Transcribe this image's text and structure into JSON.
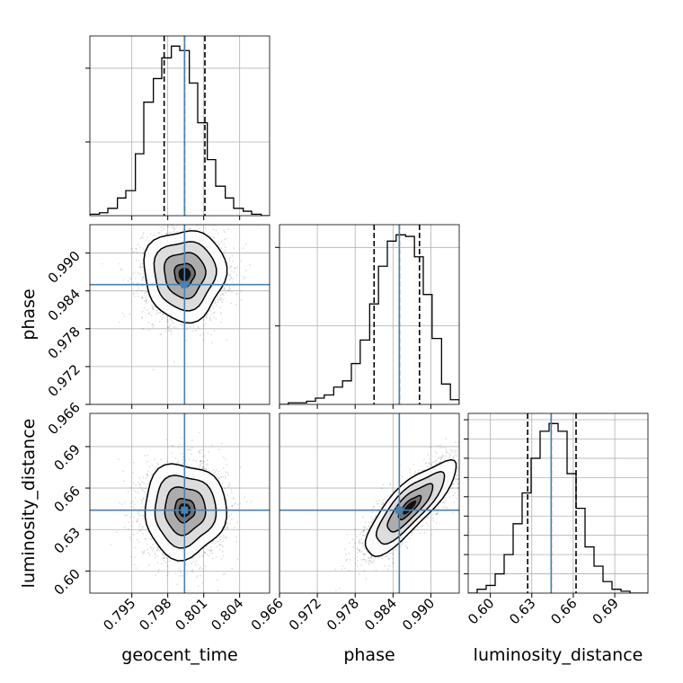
{
  "chart_data": {
    "type": "corner",
    "parameters": [
      "geocent_time",
      "phase",
      "luminosity_distance"
    ],
    "truths": {
      "geocent_time": 0.7994,
      "phase": 0.985,
      "luminosity_distance": 0.644
    },
    "quantiles": {
      "geocent_time": [
        0.7977,
        0.7994,
        0.8011
      ],
      "phase": [
        0.981,
        0.985,
        0.9882
      ],
      "luminosity_distance": [
        0.627,
        0.644,
        0.662
      ]
    },
    "axes": {
      "geocent_time": {
        "range": [
          0.7915,
          0.8065
        ],
        "ticks": [
          0.795,
          0.798,
          0.801,
          0.804
        ],
        "tick_labels": [
          "0.795",
          "0.798",
          "0.801",
          "0.804"
        ]
      },
      "phase": {
        "range": [
          0.966,
          0.9945
        ],
        "ticks": [
          0.966,
          0.972,
          0.978,
          0.984,
          0.99
        ],
        "tick_labels": [
          "0.966",
          "0.972",
          "0.978",
          "0.984",
          "0.990"
        ]
      },
      "luminosity_distance": {
        "range": [
          0.584,
          0.714
        ],
        "ticks": [
          0.6,
          0.63,
          0.66,
          0.69
        ],
        "tick_labels": [
          "0.60",
          "0.63",
          "0.66",
          "0.69"
        ]
      }
    },
    "histograms": {
      "geocent_time": {
        "bin_edges": [
          0.7915,
          0.7923,
          0.793,
          0.7938,
          0.7945,
          0.7953,
          0.796,
          0.7968,
          0.7975,
          0.7983,
          0.799,
          0.7998,
          0.8005,
          0.8013,
          0.802,
          0.8028,
          0.8035,
          0.8043,
          0.805,
          0.8058,
          0.8065
        ],
        "counts": [
          1,
          2,
          5,
          12,
          17,
          42,
          77,
          93,
          107,
          115,
          112,
          90,
          63,
          38,
          20,
          12,
          5,
          3,
          1,
          0
        ]
      },
      "phase": {
        "bin_edges": [
          0.966,
          0.9674,
          0.9689,
          0.9703,
          0.9717,
          0.9731,
          0.9746,
          0.976,
          0.9774,
          0.9788,
          0.9803,
          0.9817,
          0.9831,
          0.9845,
          0.986,
          0.9874,
          0.9888,
          0.9902,
          0.9917,
          0.9931,
          0.9945
        ],
        "counts": [
          0,
          1,
          1,
          2,
          4,
          6,
          11,
          15,
          26,
          41,
          64,
          88,
          104,
          108,
          107,
          94,
          70,
          42,
          13,
          3
        ]
      },
      "luminosity_distance": {
        "bin_edges": [
          0.584,
          0.5905,
          0.597,
          0.6035,
          0.61,
          0.6165,
          0.623,
          0.6295,
          0.636,
          0.6425,
          0.649,
          0.6555,
          0.662,
          0.6685,
          0.675,
          0.6815,
          0.688,
          0.6945,
          0.701,
          0.7075,
          0.714
        ],
        "counts": [
          0,
          2,
          4,
          10,
          20,
          36,
          52,
          70,
          84,
          88,
          84,
          62,
          44,
          24,
          14,
          6,
          2,
          1,
          0,
          0
        ]
      }
    },
    "joint_pairs": [
      {
        "x": "geocent_time",
        "y": "phase",
        "center": [
          0.7994,
          0.9866
        ],
        "sd": [
          0.0017,
          0.0036
        ],
        "rho": 0.0
      },
      {
        "x": "geocent_time",
        "y": "luminosity_distance",
        "center": [
          0.7994,
          0.644
        ],
        "sd": [
          0.0017,
          0.017
        ],
        "rho": 0.0
      },
      {
        "x": "phase",
        "y": "luminosity_distance",
        "center": [
          0.9866,
          0.646
        ],
        "sd": [
          0.0036,
          0.017
        ],
        "rho": 0.82
      }
    ],
    "contour_levels": [
      "0.5-sigma",
      "1-sigma",
      "1.5-sigma",
      "2-sigma"
    ],
    "colors": {
      "truth": "#4682b4",
      "line": "#000000",
      "grid": "#b0b0b0",
      "scatter": "#000000"
    },
    "grid": true,
    "legend": "none"
  }
}
